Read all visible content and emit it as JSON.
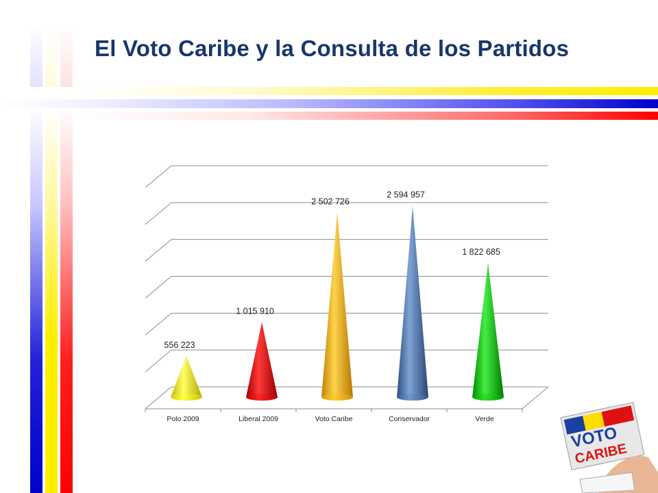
{
  "slide": {
    "title": "El Voto Caribe y la Consulta de los  Partidos"
  },
  "decoration": {
    "stripe_colors": [
      "#0000cc",
      "#ffee00",
      "#ff0000"
    ]
  },
  "logo": {
    "text_line1": "VOTO",
    "text_line2": "CARIBE",
    "kind": "ballot-logo-with-hand"
  },
  "chart_data": {
    "type": "bar",
    "style": "3d-cone",
    "title": "",
    "xlabel": "",
    "ylabel": "",
    "categories": [
      "Polo 2009",
      "Liberal 2009",
      "Voto Caribe",
      "Conservador",
      "Verde"
    ],
    "values": [
      556223,
      1015910,
      2502726,
      2594957,
      1822685
    ],
    "data_labels": [
      "556 223",
      "1 015 910",
      "2 502 726",
      "2 594 957",
      "1 822 685"
    ],
    "colors": [
      "#ffff00",
      "#ff0000",
      "#ffc000",
      "#4f81bd",
      "#00cc00"
    ],
    "ylim": [
      0,
      3000000
    ],
    "gridlines": 6,
    "grid": true,
    "legend": "none",
    "y_tick_labels_visible": false
  }
}
